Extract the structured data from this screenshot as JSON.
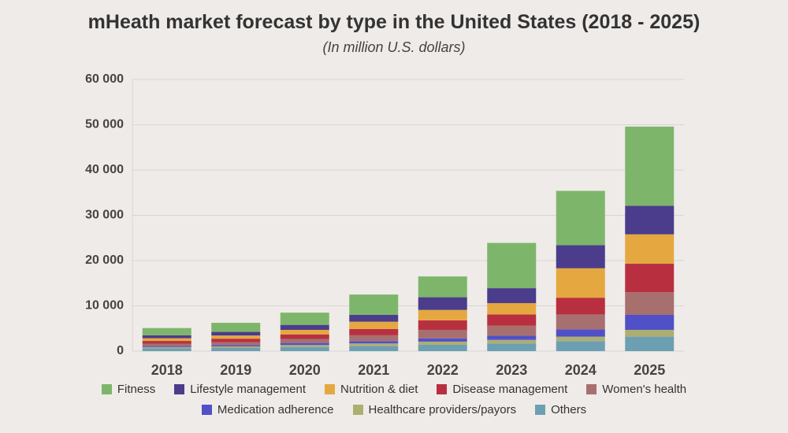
{
  "chart_data": {
    "type": "bar",
    "stacked": true,
    "title": "mHeath market forecast by type in the United States (2018 - 2025)",
    "subtitle": "(In million U.S. dollars)",
    "categories": [
      "2018",
      "2019",
      "2020",
      "2021",
      "2022",
      "2023",
      "2024",
      "2025"
    ],
    "ylim": [
      0,
      60000
    ],
    "yticks": [
      0,
      10000,
      20000,
      30000,
      40000,
      50000,
      60000
    ],
    "ytick_labels": [
      "0",
      "10 000",
      "20 000",
      "30 000",
      "40 000",
      "50 000",
      "60 000"
    ],
    "grid": true,
    "legend_position": "bottom",
    "series": [
      {
        "name": "Others",
        "color": "#6d9fb3",
        "values": [
          600,
          700,
          900,
          1100,
          1400,
          1700,
          2200,
          3200
        ]
      },
      {
        "name": "Healthcare providers/payors",
        "color": "#adae72",
        "values": [
          300,
          350,
          450,
          600,
          700,
          800,
          1000,
          1500
        ]
      },
      {
        "name": "Medication adherence",
        "color": "#5050c8",
        "values": [
          250,
          300,
          450,
          500,
          700,
          900,
          1600,
          3300
        ]
      },
      {
        "name": "Women's health",
        "color": "#a86f6f",
        "values": [
          500,
          600,
          900,
          1300,
          1900,
          2200,
          3300,
          5000
        ]
      },
      {
        "name": "Disease management",
        "color": "#b8303f",
        "values": [
          600,
          800,
          1000,
          1400,
          2100,
          2500,
          3700,
          6300
        ]
      },
      {
        "name": "Nutrition & diet",
        "color": "#e5a840",
        "values": [
          600,
          700,
          1000,
          1600,
          2300,
          2500,
          6500,
          6500
        ]
      },
      {
        "name": "Lifestyle management",
        "color": "#4b3c8c",
        "values": [
          650,
          800,
          1100,
          1500,
          2800,
          3300,
          5100,
          6300
        ]
      },
      {
        "name": "Fitness",
        "color": "#7db66b",
        "values": [
          1600,
          2000,
          2700,
          4500,
          4600,
          10000,
          12000,
          17500
        ]
      }
    ],
    "legend_order": [
      [
        "Fitness",
        "Lifestyle management",
        "Nutrition & diet",
        "Disease management",
        "Women's health"
      ],
      [
        "Medication adherence",
        "Healthcare providers/payors",
        "Others"
      ]
    ]
  }
}
